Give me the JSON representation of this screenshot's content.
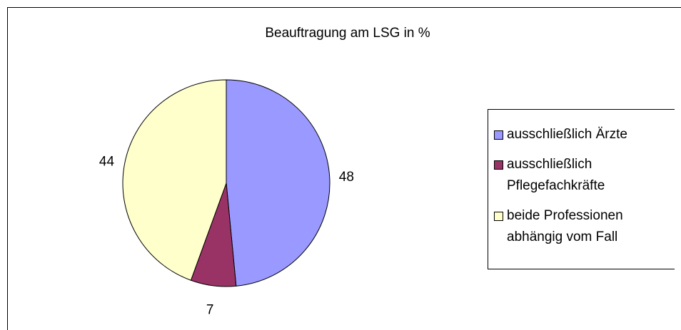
{
  "chart_data": {
    "type": "pie",
    "title": "Beauftragung am LSG in %",
    "categories": [
      "ausschließlich Ärzte",
      "ausschließlich Pflegefachkräfte",
      "beide Professionen abhängig vom Fall"
    ],
    "values": [
      48,
      7,
      44
    ],
    "colors": [
      "#9999ff",
      "#993366",
      "#ffffcc"
    ]
  }
}
